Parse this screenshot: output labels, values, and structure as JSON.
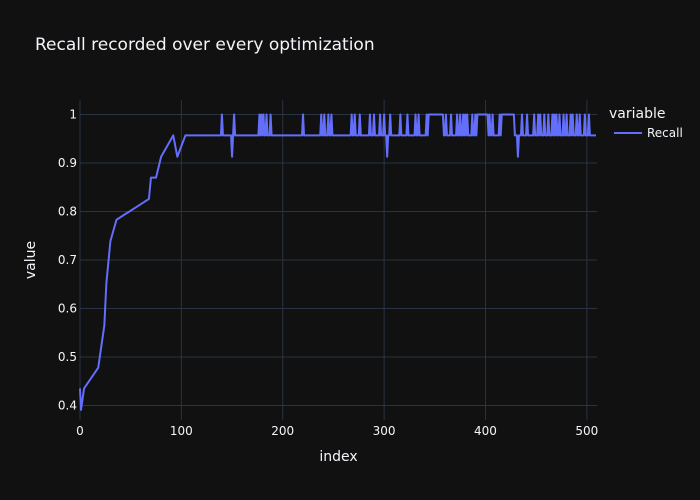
{
  "chart_data": {
    "type": "line",
    "title": "Recall recorded over every optimization",
    "xlabel": "index",
    "ylabel": "value",
    "xlim": [
      0,
      510
    ],
    "ylim": [
      0.37,
      1.03
    ],
    "xticks": [
      0,
      100,
      200,
      300,
      400,
      500
    ],
    "xtick_labels": [
      "0",
      "100",
      "200",
      "300",
      "400",
      "500"
    ],
    "yticks": [
      0.4,
      0.5,
      0.6,
      0.7,
      0.8,
      0.9,
      1.0
    ],
    "ytick_labels": [
      "0.4",
      "0.5",
      "0.6",
      "0.7",
      "0.8",
      "0.9",
      "1"
    ],
    "grid": true,
    "legend": {
      "title": "variable",
      "placement": "right"
    },
    "colors": {
      "background": "#111111",
      "grid": "#283442",
      "line": "#636efa",
      "text": "#f2f5fa"
    },
    "series": [
      {
        "name": "Recall",
        "color": "#636efa",
        "base_value": 0.957,
        "steps": [
          [
            0,
            0.435
          ],
          [
            1,
            0.391
          ],
          [
            4,
            0.435
          ],
          [
            18,
            0.478
          ],
          [
            24,
            0.565
          ],
          [
            26,
            0.652
          ],
          [
            30,
            0.739
          ],
          [
            36,
            0.783
          ],
          [
            68,
            0.826
          ],
          [
            70,
            0.87
          ],
          [
            75,
            0.87
          ],
          [
            80,
            0.913
          ],
          [
            92,
            0.957
          ],
          [
            96,
            0.913
          ],
          [
            104,
            0.957
          ]
        ],
        "spikes": [
          [
            140,
            1.0
          ],
          [
            150,
            0.913
          ],
          [
            152,
            1.0
          ],
          [
            177,
            1.0
          ],
          [
            179,
            1.0
          ],
          [
            181,
            1.0
          ],
          [
            184,
            1.0
          ],
          [
            188,
            1.0
          ],
          [
            220,
            1.0
          ],
          [
            238,
            1.0
          ],
          [
            241,
            1.0
          ],
          [
            245,
            1.0
          ],
          [
            248,
            1.0
          ],
          [
            268,
            1.0
          ],
          [
            271,
            1.0
          ],
          [
            276,
            1.0
          ],
          [
            286,
            1.0
          ],
          [
            290,
            1.0
          ],
          [
            296,
            1.0
          ],
          [
            300,
            1.0
          ],
          [
            303,
            0.913
          ],
          [
            306,
            1.0
          ],
          [
            316,
            1.0
          ],
          [
            323,
            1.0
          ],
          [
            331,
            1.0
          ],
          [
            334,
            1.0
          ],
          [
            342,
            1.0
          ],
          [
            361,
            1.0
          ],
          [
            366,
            1.0
          ],
          [
            372,
            1.0
          ],
          [
            375,
            1.0
          ],
          [
            378,
            1.0
          ],
          [
            380,
            1.0
          ],
          [
            382,
            1.0
          ],
          [
            387,
            1.0
          ],
          [
            390,
            1.0
          ],
          [
            404,
            1.0
          ],
          [
            407,
            1.0
          ],
          [
            414,
            1.0
          ],
          [
            432,
            0.913
          ],
          [
            436,
            1.0
          ],
          [
            441,
            1.0
          ],
          [
            448,
            1.0
          ],
          [
            452,
            1.0
          ],
          [
            454,
            1.0
          ],
          [
            458,
            1.0
          ],
          [
            462,
            1.0
          ],
          [
            466,
            1.0
          ],
          [
            468,
            1.0
          ],
          [
            470,
            1.0
          ],
          [
            473,
            1.0
          ],
          [
            477,
            1.0
          ],
          [
            480,
            1.0
          ],
          [
            484,
            1.0
          ],
          [
            486,
            1.0
          ],
          [
            490,
            1.0
          ],
          [
            493,
            1.0
          ],
          [
            498,
            1.0
          ],
          [
            502,
            1.0
          ]
        ],
        "plateaus": [
          [
            241,
            265,
            1.0
          ],
          [
            307,
            329,
            1.0
          ],
          [
            344,
            358,
            1.0
          ],
          [
            392,
            402,
            1.0
          ],
          [
            416,
            428,
            1.0
          ]
        ],
        "x_end": 509
      }
    ]
  }
}
